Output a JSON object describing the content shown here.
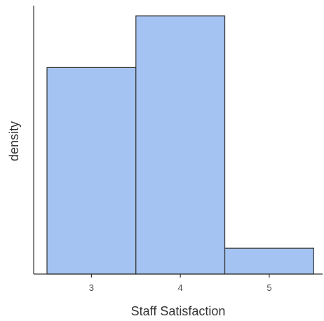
{
  "chart_data": {
    "type": "bar",
    "subtype": "histogram",
    "xlabel": "Staff Satisfaction",
    "ylabel": "density",
    "bins": [
      {
        "x0": 2.5,
        "x1": 3.5,
        "value": 0.4
      },
      {
        "x0": 3.5,
        "x1": 4.5,
        "value": 0.5
      },
      {
        "x0": 4.5,
        "x1": 5.5,
        "value": 0.05
      }
    ],
    "xlim": [
      2.35,
      5.6
    ],
    "ylim": [
      0,
      0.52
    ],
    "xticks": [
      3,
      4,
      5
    ],
    "yticks_visible": false,
    "grid": false,
    "legend": false,
    "colors": {
      "bar_fill": "#a4c3f2",
      "bar_stroke": "#333333",
      "axis": "#333333",
      "tick_label": "#4d4d4d"
    }
  }
}
